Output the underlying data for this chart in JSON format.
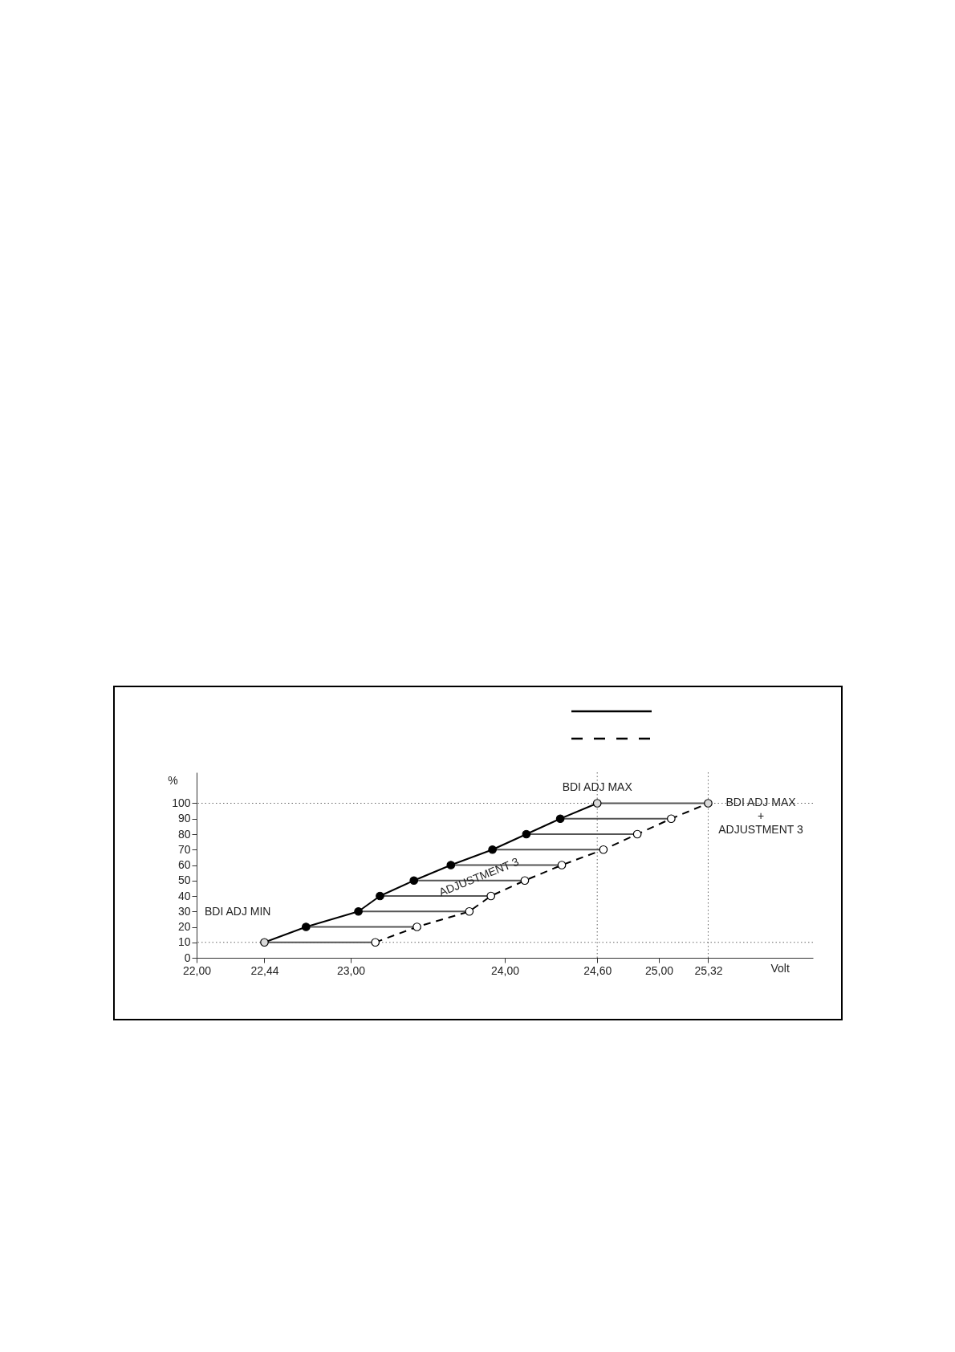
{
  "chart_data": {
    "type": "line",
    "xlabel": "Volt",
    "ylabel": "%",
    "xlim": [
      22,
      26
    ],
    "ylim": [
      0,
      120
    ],
    "xticks": [
      {
        "value": 22,
        "label": "22,00"
      },
      {
        "value": 22.44,
        "label": "22,44"
      },
      {
        "value": 23,
        "label": "23,00"
      },
      {
        "value": 24,
        "label": "24,00"
      },
      {
        "value": 24.6,
        "label": "24,60"
      },
      {
        "value": 25,
        "label": "25,00"
      },
      {
        "value": 25.32,
        "label": "25,32"
      }
    ],
    "yticks": [
      0,
      10,
      20,
      30,
      40,
      50,
      60,
      70,
      80,
      90,
      100
    ],
    "marker": "circle",
    "series": [
      {
        "color": "#000000",
        "line_style": "solid",
        "x": [
          22.44,
          22.71,
          23.05,
          23.19,
          23.41,
          23.65,
          23.92,
          24.14,
          24.36,
          24.6
        ],
        "values": [
          10,
          20,
          30,
          40,
          50,
          60,
          70,
          80,
          90,
          100
        ],
        "colors": [
          "#d9d9d9",
          "#000000",
          "#000000",
          "#000000",
          "#000000",
          "#000000",
          "#000000",
          "#000000",
          "#000000",
          "#d9d9d9"
        ]
      },
      {
        "color": "#000000",
        "line_style": "dashed",
        "x": [
          23.16,
          23.43,
          23.77,
          23.91,
          24.13,
          24.37,
          24.64,
          24.86,
          25.08,
          25.32
        ],
        "values": [
          10,
          20,
          30,
          40,
          50,
          60,
          70,
          80,
          90,
          100
        ],
        "colors": [
          "#ffffff",
          "#ffffff",
          "#ffffff",
          "#ffffff",
          "#ffffff",
          "#ffffff",
          "#ffffff",
          "#ffffff",
          "#ffffff",
          "#d9d9d9"
        ]
      },
      {
        "color": "#555555",
        "marker": "none",
        "x": [
          22.44,
          23.16
        ],
        "values": [
          10,
          10
        ]
      },
      {
        "color": "#555555",
        "marker": "none",
        "x": [
          22.71,
          23.43
        ],
        "values": [
          20,
          20
        ]
      },
      {
        "color": "#555555",
        "marker": "none",
        "x": [
          23.05,
          23.77
        ],
        "values": [
          30,
          30
        ]
      },
      {
        "color": "#555555",
        "marker": "none",
        "x": [
          23.19,
          23.91
        ],
        "values": [
          40,
          40
        ]
      },
      {
        "color": "#555555",
        "marker": "none",
        "x": [
          23.41,
          24.13
        ],
        "values": [
          50,
          50
        ]
      },
      {
        "color": "#555555",
        "marker": "none",
        "x": [
          23.65,
          24.37
        ],
        "values": [
          60,
          60
        ]
      },
      {
        "color": "#555555",
        "marker": "none",
        "x": [
          23.92,
          24.64
        ],
        "values": [
          70,
          70
        ]
      },
      {
        "color": "#555555",
        "marker": "none",
        "x": [
          24.14,
          24.86
        ],
        "values": [
          80,
          80
        ]
      },
      {
        "color": "#555555",
        "marker": "none",
        "x": [
          24.36,
          25.08
        ],
        "values": [
          90,
          90
        ]
      },
      {
        "color": "#555555",
        "marker": "none",
        "x": [
          24.6,
          25.32
        ],
        "values": [
          100,
          100
        ]
      }
    ],
    "ref_lines": [
      {
        "axis": "y",
        "value": 100,
        "line_style": "dotted"
      },
      {
        "axis": "y",
        "value": 10,
        "line_style": "dotted"
      },
      {
        "axis": "x",
        "value": 24.6,
        "line_style": "dotted"
      },
      {
        "axis": "x",
        "value": 25.32,
        "line_style": "dotted"
      }
    ],
    "annotations": [
      "BDI ADJ MIN",
      {
        "text": "BDI ADJ MAX",
        "x": 24.6,
        "y": 110
      },
      "BDI ADJ MAX\n+\nADJUSTMENT 3",
      "ADJUSTMENT 3"
    ]
  }
}
